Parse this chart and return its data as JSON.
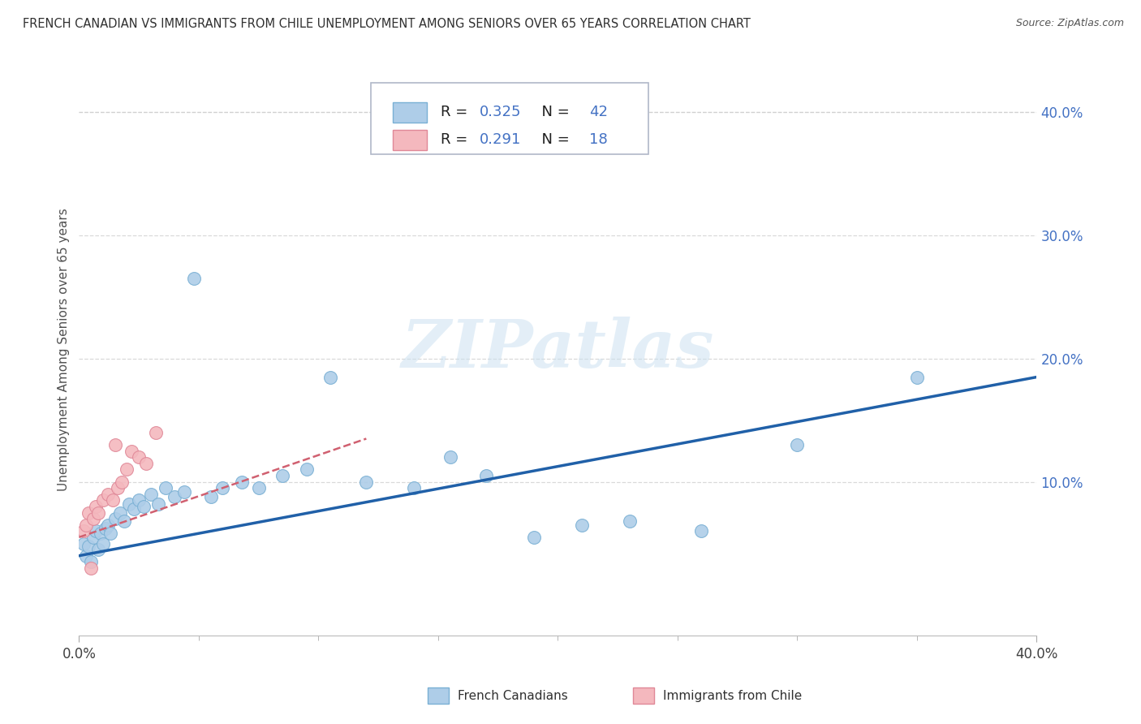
{
  "title": "FRENCH CANADIAN VS IMMIGRANTS FROM CHILE UNEMPLOYMENT AMONG SENIORS OVER 65 YEARS CORRELATION CHART",
  "source": "Source: ZipAtlas.com",
  "ylabel": "Unemployment Among Seniors over 65 years",
  "right_yticks": [
    "40.0%",
    "30.0%",
    "20.0%",
    "10.0%"
  ],
  "right_ytick_vals": [
    0.4,
    0.3,
    0.2,
    0.1
  ],
  "xmin": 0.0,
  "xmax": 0.4,
  "ymin": -0.025,
  "ymax": 0.44,
  "watermark_text": "ZIPatlas",
  "R_blue": "0.325",
  "N_blue": "42",
  "R_pink": "0.291",
  "N_pink": "18",
  "blue_scatter_color": "#aecde8",
  "blue_edge_color": "#7ab0d4",
  "pink_scatter_color": "#f4b8be",
  "pink_edge_color": "#e08898",
  "blue_line_color": "#2060a8",
  "pink_line_color": "#d06070",
  "grid_color": "#d0d0d0",
  "background_color": "#ffffff",
  "title_color": "#303030",
  "ylabel_color": "#505050",
  "right_tick_color": "#4472c4",
  "legend_text_black": "#202020",
  "legend_text_blue": "#4472c4",
  "blue_points_x": [
    0.002,
    0.003,
    0.004,
    0.005,
    0.006,
    0.007,
    0.008,
    0.009,
    0.01,
    0.011,
    0.012,
    0.013,
    0.015,
    0.017,
    0.019,
    0.021,
    0.023,
    0.025,
    0.027,
    0.03,
    0.033,
    0.036,
    0.04,
    0.044,
    0.048,
    0.055,
    0.06,
    0.068,
    0.075,
    0.085,
    0.095,
    0.105,
    0.12,
    0.14,
    0.155,
    0.17,
    0.19,
    0.21,
    0.23,
    0.26,
    0.3,
    0.35
  ],
  "blue_points_y": [
    0.05,
    0.04,
    0.048,
    0.035,
    0.055,
    0.06,
    0.045,
    0.058,
    0.05,
    0.062,
    0.065,
    0.058,
    0.07,
    0.075,
    0.068,
    0.082,
    0.078,
    0.085,
    0.08,
    0.09,
    0.082,
    0.095,
    0.088,
    0.092,
    0.265,
    0.088,
    0.095,
    0.1,
    0.095,
    0.105,
    0.11,
    0.185,
    0.1,
    0.095,
    0.12,
    0.105,
    0.055,
    0.065,
    0.068,
    0.06,
    0.13,
    0.185
  ],
  "pink_points_x": [
    0.002,
    0.003,
    0.004,
    0.005,
    0.006,
    0.007,
    0.008,
    0.01,
    0.012,
    0.014,
    0.016,
    0.018,
    0.02,
    0.022,
    0.025,
    0.028,
    0.032,
    0.015
  ],
  "pink_points_y": [
    0.06,
    0.065,
    0.075,
    0.03,
    0.07,
    0.08,
    0.075,
    0.085,
    0.09,
    0.085,
    0.095,
    0.1,
    0.11,
    0.125,
    0.12,
    0.115,
    0.14,
    0.13
  ],
  "blue_trend_x0": 0.0,
  "blue_trend_x1": 0.4,
  "blue_trend_y0": 0.04,
  "blue_trend_y1": 0.185,
  "pink_trend_x0": 0.0,
  "pink_trend_x1": 0.12,
  "pink_trend_y0": 0.055,
  "pink_trend_y1": 0.135
}
